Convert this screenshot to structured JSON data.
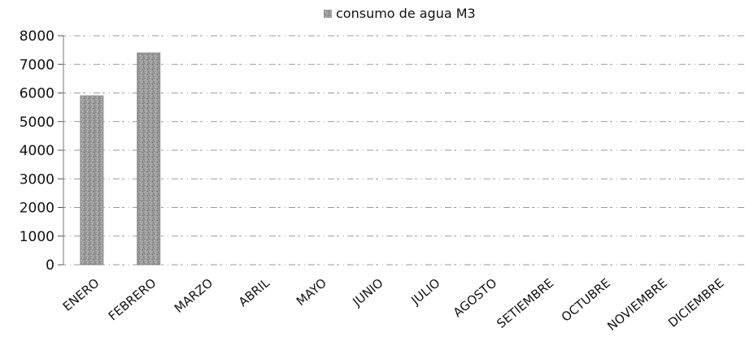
{
  "chart_data": {
    "type": "bar",
    "title": "",
    "xlabel": "",
    "ylabel": "",
    "categories": [
      "ENERO",
      "FEBRERO",
      "MARZO",
      "ABRIL",
      "MAYO",
      "JUNIO",
      "JULIO",
      "AGOSTO",
      "SETIEMBRE",
      "OCTUBRE",
      "NOVIEMBRE",
      "DICIEMBRE"
    ],
    "series": [
      {
        "name": "consumo de agua M3",
        "values": [
          5900,
          7400,
          0,
          0,
          0,
          0,
          0,
          0,
          0,
          0,
          0,
          0
        ],
        "color": "#8c8c8c"
      }
    ],
    "ylim": [
      0,
      8000
    ],
    "yticks": [
      0,
      1000,
      2000,
      3000,
      4000,
      5000,
      6000,
      7000,
      8000
    ],
    "grid": true,
    "legend": "top-center"
  }
}
